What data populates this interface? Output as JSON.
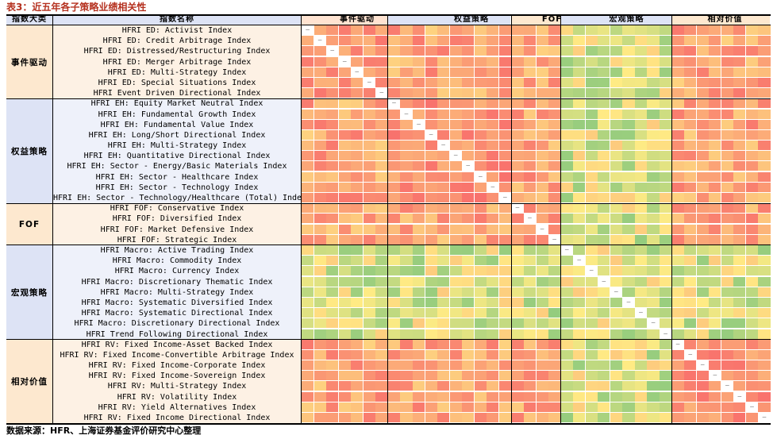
{
  "title": "表3：近五年各子策略业绩相关性",
  "source": "数据来源：HFR、上海证券基金评价研究中心整理",
  "headers": {
    "category": "指数大类",
    "index_name": "指数名称",
    "column_groups": [
      "事件驱动",
      "权益策略",
      "FOF",
      "宏观策略",
      "相对价值"
    ]
  },
  "group_colors": {
    "事件驱动": "#ffe3d1",
    "权益策略": "#dde3f5",
    "FOF": "#fde8cf",
    "宏观策略": "#dde3f5",
    "相对价值": "#fde8cf"
  },
  "groups": [
    {
      "label": "事件驱动",
      "count": 7
    },
    {
      "label": "权益策略",
      "count": 10
    },
    {
      "label": "FOF",
      "count": 4
    },
    {
      "label": "宏观策略",
      "count": 9
    },
    {
      "label": "相对价值",
      "count": 8
    }
  ],
  "rows": [
    {
      "name": "HFRI ED: Activist Index"
    },
    {
      "name": "HFRI ED: Credit Arbitrage Index"
    },
    {
      "name": "HFRI ED: Distressed/Restructuring Index"
    },
    {
      "name": "HFRI ED: Merger Arbitrage Index"
    },
    {
      "name": "HFRI ED: Multi-Strategy Index"
    },
    {
      "name": "HFRI ED: Special Situations Index"
    },
    {
      "name": "HFRI Event Driven Directional Index"
    },
    {
      "name": "HFRI EH: Equity Market Neutral Index"
    },
    {
      "name": "HFRI EH: Fundamental Growth Index"
    },
    {
      "name": "HFRI EH: Fundamental Value Index"
    },
    {
      "name": "HFRI EH: Long/Short Directional Index"
    },
    {
      "name": "HFRI EH: Multi-Strategy Index"
    },
    {
      "name": "HFRI EH: Quantitative Directional Index"
    },
    {
      "name": "HFRI EH: Sector - Energy/Basic Materials Index"
    },
    {
      "name": "HFRI EH: Sector - Healthcare Index"
    },
    {
      "name": "HFRI EH: Sector - Technology Index"
    },
    {
      "name": "HFRI EH: Sector - Technology/Healthcare (Total) Index"
    },
    {
      "name": "HFRI FOF: Conservative Index"
    },
    {
      "name": "HFRI FOF: Diversified Index"
    },
    {
      "name": "HFRI FOF: Market Defensive Index"
    },
    {
      "name": "HFRI FOF: Strategic Index"
    },
    {
      "name": "HFRI Macro: Active Trading Index"
    },
    {
      "name": "HFRI Macro: Commodity Index"
    },
    {
      "name": "HFRI Macro: Currency Index"
    },
    {
      "name": "HFRI Macro: Discretionary Thematic Index"
    },
    {
      "name": "HFRI Macro: Multi-Strategy Index"
    },
    {
      "name": "HFRI Macro: Systematic Diversified Index"
    },
    {
      "name": "HFRI Macro: Systematic Directional Index"
    },
    {
      "name": "HFRI Macro: Discretionary Directional Index"
    },
    {
      "name": "HFRI Trend Following Directional Index"
    },
    {
      "name": "HFRI RV: Fixed Income-Asset Backed Index"
    },
    {
      "name": "HFRI RV: Fixed Income-Convertible Arbitrage Index"
    },
    {
      "name": "HFRI RV: Fixed Income-Corporate Index"
    },
    {
      "name": "HFRI RV: Fixed Income-Sovereign Index"
    },
    {
      "name": "HFRI RV: Multi-Strategy Index"
    },
    {
      "name": "HFRI RV: Volatility Index"
    },
    {
      "name": "HFRI RV: Yield Alternatives Index"
    },
    {
      "name": "HFRI RV: Fixed Income Directional Index"
    }
  ],
  "diagonal_marker": "—",
  "color_scale": {
    "low": "#63be7b",
    "mid": "#ffeb84",
    "high": "#f8696b",
    "min": -0.6,
    "max": 1.0
  }
}
